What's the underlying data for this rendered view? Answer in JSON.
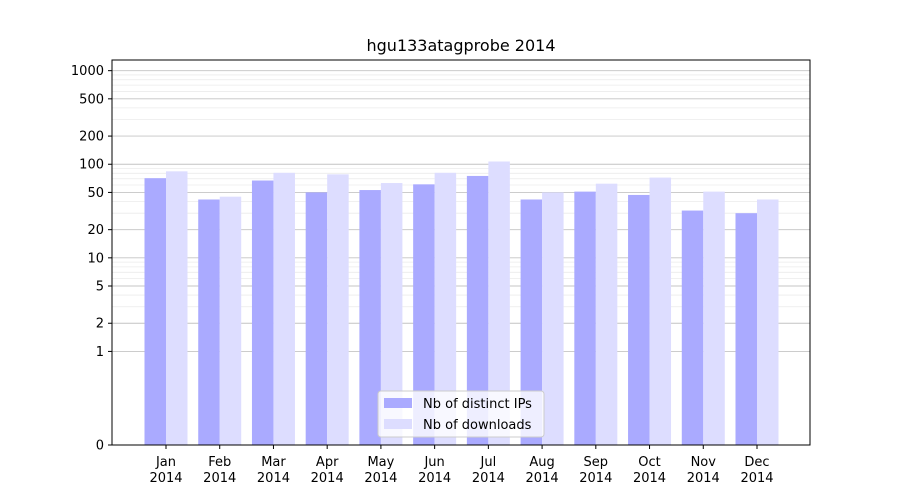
{
  "chart_data": {
    "type": "bar",
    "title": "hgu133atagprobe 2014",
    "xlabel": "",
    "ylabel": "",
    "yscale": "symlog",
    "y_ticks": [
      0,
      1,
      2,
      5,
      10,
      20,
      50,
      100,
      200,
      500,
      1000
    ],
    "ylim": [
      0,
      1300
    ],
    "grid": true,
    "legend_position": "bottom-center",
    "categories": [
      [
        "Jan",
        "2014"
      ],
      [
        "Feb",
        "2014"
      ],
      [
        "Mar",
        "2014"
      ],
      [
        "Apr",
        "2014"
      ],
      [
        "May",
        "2014"
      ],
      [
        "Jun",
        "2014"
      ],
      [
        "Jul",
        "2014"
      ],
      [
        "Aug",
        "2014"
      ],
      [
        "Sep",
        "2014"
      ],
      [
        "Oct",
        "2014"
      ],
      [
        "Nov",
        "2014"
      ],
      [
        "Dec",
        "2014"
      ]
    ],
    "series": [
      {
        "name": "Nb of distinct IPs",
        "color": "#aaaaff",
        "values": [
          71,
          42,
          67,
          50,
          53,
          61,
          75,
          42,
          51,
          47,
          32,
          30
        ]
      },
      {
        "name": "Nb of downloads",
        "color": "#ddddff",
        "values": [
          84,
          45,
          81,
          78,
          63,
          81,
          107,
          50,
          62,
          72,
          51,
          42
        ]
      }
    ]
  }
}
